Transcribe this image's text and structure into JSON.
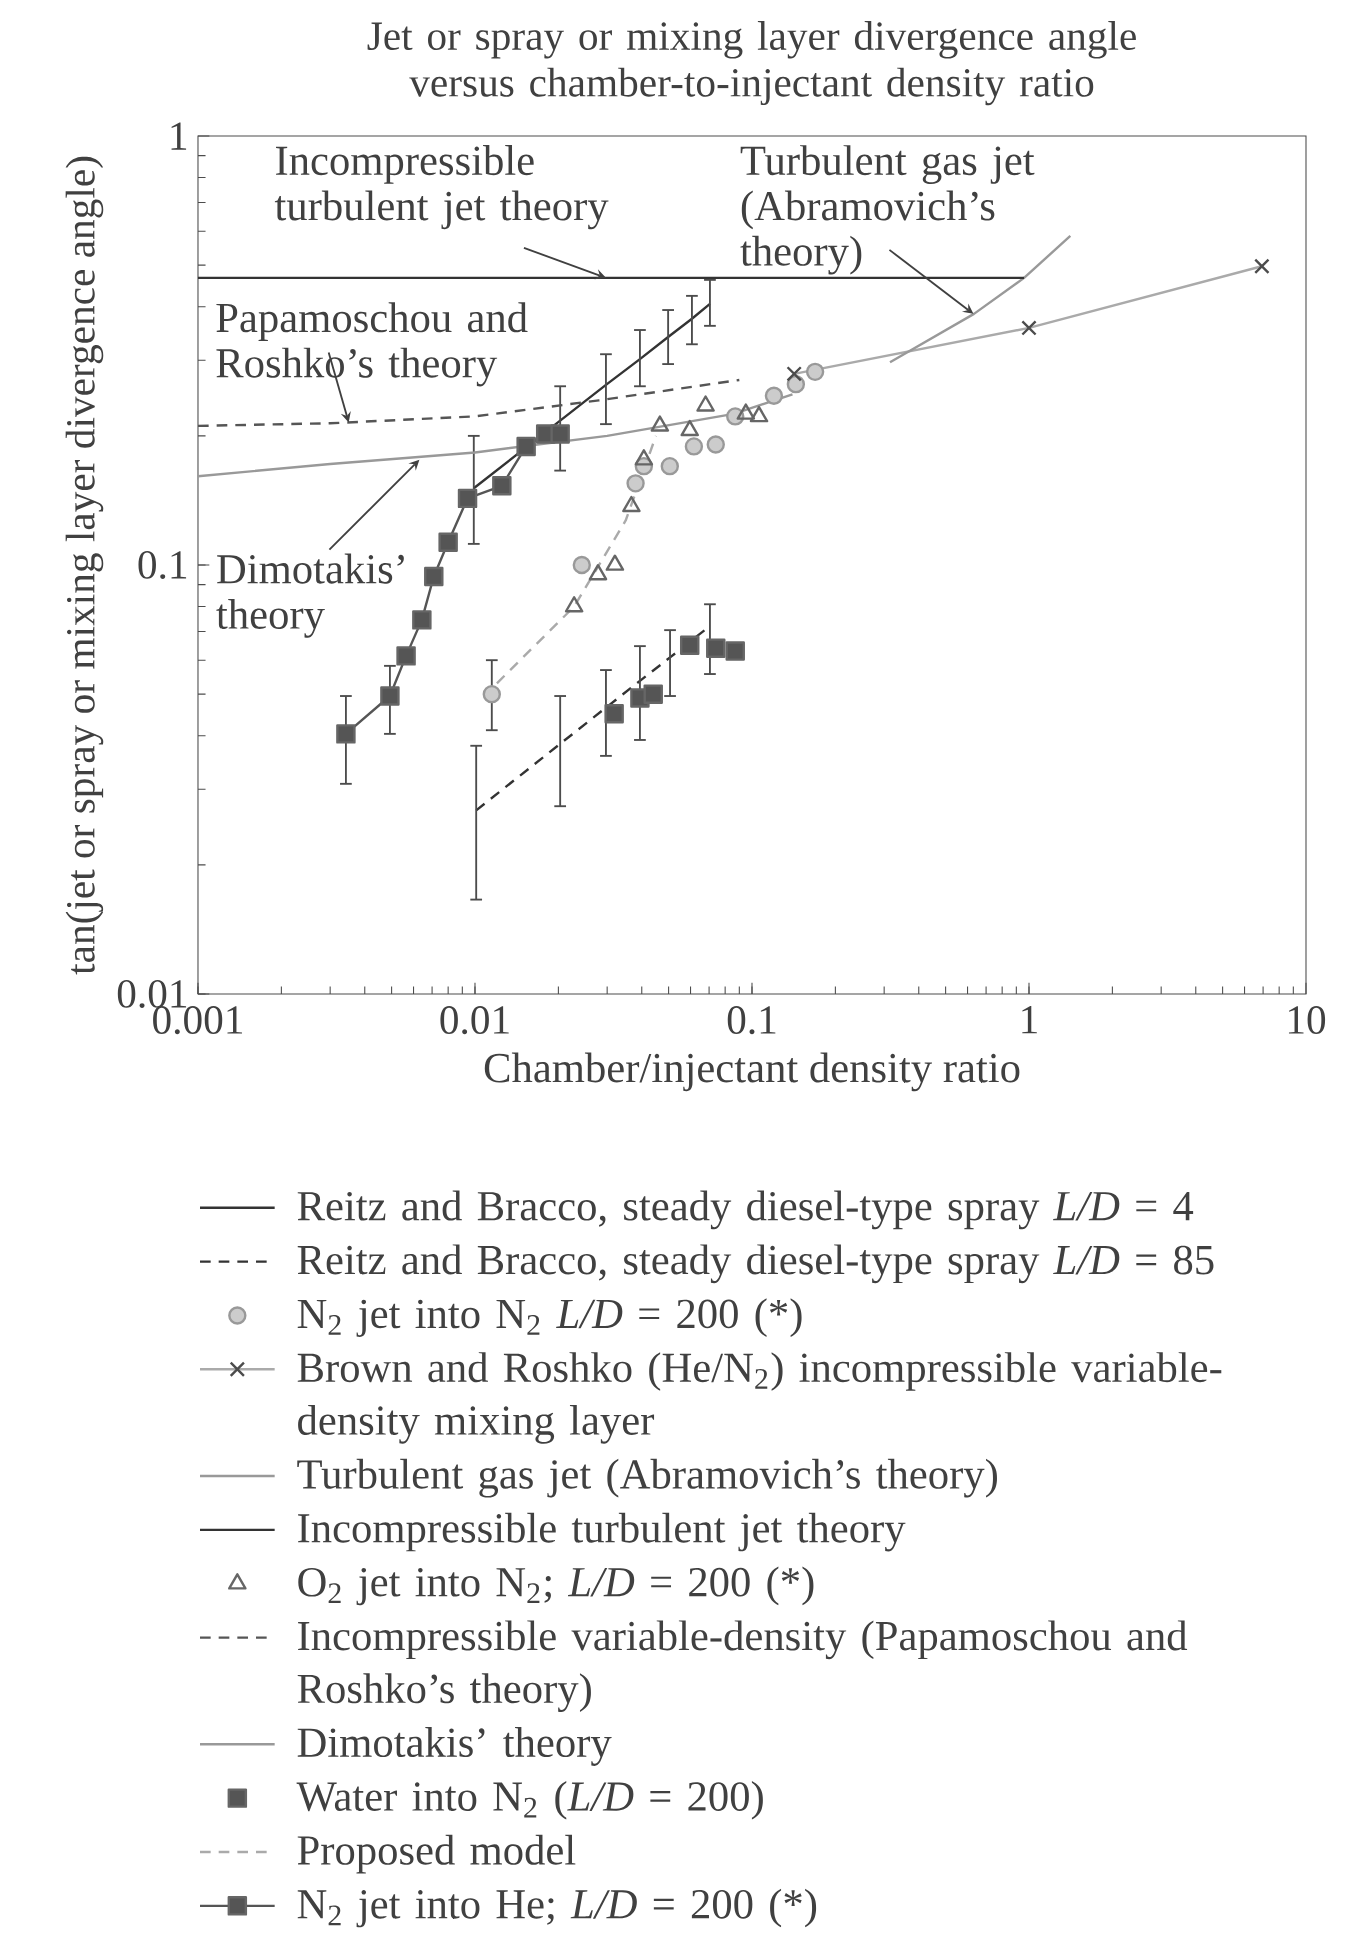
{
  "chart_data": {
    "type": "line",
    "title": "Jet or spray or mixing layer divergence angle versus chamber-to-injectant density ratio",
    "xlabel": "Chamber/injectant density ratio",
    "ylabel": "tan(jet or spray or mixing layer divergence angle)",
    "log": "xy",
    "xlim": [
      0.001,
      10
    ],
    "ylim": [
      0.01,
      1
    ],
    "xticks": [
      0.001,
      0.01,
      0.1,
      1,
      10
    ],
    "yticks": [
      0.01,
      0.1,
      1
    ],
    "legend": "bottom",
    "series": [
      {
        "name": "Reitz and Bracco, steady diesel-type spray *L/D* = 4",
        "type": "line",
        "marker": "none",
        "line_style": "solid",
        "color": "#333333",
        "x": [
          0.0099,
          0.0203,
          0.0297,
          0.0394,
          0.0498,
          0.0607,
          0.0705
        ],
        "values": [
          0.151,
          0.217,
          0.263,
          0.302,
          0.34,
          0.375,
          0.406
        ],
        "errors": [
          [
            0.112,
            0.2
          ],
          [
            0.166,
            0.261
          ],
          [
            0.213,
            0.31
          ],
          [
            0.261,
            0.353
          ],
          [
            0.294,
            0.393
          ],
          [
            0.327,
            0.424
          ],
          [
            0.361,
            0.462
          ]
        ]
      },
      {
        "name": "Reitz and Bracco, steady diesel-type spray *L/D* = 85",
        "type": "line",
        "marker": "none",
        "line_style": "dashed",
        "color": "#333333",
        "x": [
          0.0101,
          0.0203,
          0.0297,
          0.0394,
          0.0506,
          0.0705
        ],
        "values": [
          0.0268,
          0.0383,
          0.0465,
          0.0537,
          0.0609,
          0.0721
        ],
        "errors": [
          [
            0.0166,
            0.0379
          ],
          [
            0.0274,
            0.0495
          ],
          [
            0.0359,
            0.0569
          ],
          [
            0.0391,
            0.0647
          ],
          [
            0.0495,
            0.0705
          ],
          [
            0.0557,
            0.081
          ]
        ]
      },
      {
        "name": "N$_{2}$ jet into N$_{2}$ *L/D* = 200 (*)",
        "type": "scatter",
        "marker": "circle",
        "color": "#999999",
        "x": [
          0.0115,
          0.0243,
          0.038,
          0.0407,
          0.0505,
          0.0617,
          0.074,
          0.087,
          0.12,
          0.144,
          0.169
        ],
        "values": [
          0.05,
          0.1,
          0.155,
          0.17,
          0.17,
          0.189,
          0.191,
          0.222,
          0.248,
          0.264,
          0.282
        ],
        "errors": [
          [
            0.0412,
            0.06
          ],
          null,
          null,
          null,
          null,
          null,
          null,
          null,
          null,
          null,
          null
        ]
      },
      {
        "name": "Brown and Roshko (He/N$_{2}$) incompressible variable-density mixing layer",
        "type": "line",
        "marker": "cross",
        "line_style": "solid",
        "color": "#aaaaaa",
        "x": [
          0.142,
          1.0,
          6.93
        ],
        "values": [
          0.279,
          0.357,
          0.497
        ]
      },
      {
        "name": "Turbulent gas jet (Abramovich’s theory)",
        "type": "line",
        "marker": "none",
        "line_style": "solid",
        "color": "#999999",
        "x": [
          0.315,
          0.633,
          0.96,
          1.41
        ],
        "values": [
          0.297,
          0.385,
          0.467,
          0.585
        ]
      },
      {
        "name": "Incompressible turbulent jet theory",
        "type": "line",
        "marker": "none",
        "line_style": "solid",
        "color": "#333333",
        "x": [
          0.001,
          0.96
        ],
        "values": [
          0.467,
          0.467
        ]
      },
      {
        "name": "O$_{2}$ jet into N$_{2}$; *L/D* = 200 (*)",
        "type": "scatter",
        "marker": "triangle",
        "color": "#666666",
        "x": [
          0.0228,
          0.0278,
          0.032,
          0.0367,
          0.0407,
          0.0465,
          0.0596,
          0.068,
          0.095,
          0.106
        ],
        "values": [
          0.08,
          0.095,
          0.1,
          0.137,
          0.176,
          0.211,
          0.206,
          0.235,
          0.225,
          0.222
        ]
      },
      {
        "name": "Incompressible variable-density (Papamoschou and Roshko’s theory)",
        "type": "line",
        "marker": "none",
        "line_style": "dashed",
        "color": "#555555",
        "x": [
          0.001,
          0.003,
          0.01,
          0.028,
          0.09
        ],
        "values": [
          0.211,
          0.214,
          0.222,
          0.242,
          0.27
        ]
      },
      {
        "name": "Dimotakis’ theory",
        "type": "line",
        "marker": "none",
        "line_style": "solid",
        "color": "#999999",
        "x": [
          0.001,
          0.003,
          0.01,
          0.03,
          0.086,
          0.14
        ],
        "values": [
          0.161,
          0.172,
          0.183,
          0.2,
          0.225,
          0.25
        ]
      },
      {
        "name": "Water into N$_{2}$ (*L/D* = 200)",
        "type": "scatter",
        "marker": "square",
        "color": "#555555",
        "x": [
          0.0318,
          0.0394,
          0.044,
          0.0596,
          0.074,
          0.087
        ],
        "values": [
          0.045,
          0.049,
          0.05,
          0.065,
          0.064,
          0.063
        ]
      },
      {
        "name": "Proposed model",
        "type": "line",
        "marker": "none",
        "line_style": "dashed",
        "color": "#aaaaaa",
        "x": [
          0.012,
          0.0228,
          0.035,
          0.045
        ],
        "values": [
          0.053,
          0.08,
          0.127,
          0.2
        ]
      },
      {
        "name": "N$_{2}$ jet into He; *L/D* = 200 (*)",
        "type": "line",
        "marker": "square",
        "line_style": "solid",
        "color": "#555555",
        "x": [
          0.00342,
          0.00493,
          0.00564,
          0.00643,
          0.0071,
          0.008,
          0.0094,
          0.0125,
          0.0153,
          0.018,
          0.0203
        ],
        "values": [
          0.0404,
          0.0495,
          0.0614,
          0.0745,
          0.094,
          0.113,
          0.143,
          0.153,
          0.189,
          0.202,
          0.202
        ],
        "errors": [
          [
            0.0309,
            0.0495
          ],
          [
            0.0404,
            0.0582
          ],
          null,
          null,
          null,
          null,
          null,
          null,
          null,
          null,
          null
        ]
      }
    ],
    "annotations": [
      {
        "text": "Incompressible turbulent jet theory",
        "x": 0.0297,
        "y": 0.467
      },
      {
        "text": "Papamoschou and Roshko’s theory",
        "x": 0.0035,
        "y": 0.215
      },
      {
        "text": "Dimotakis’ theory",
        "x": 0.0063,
        "y": 0.176
      },
      {
        "text": "Turbulent gas jet (Abramovich’s theory)",
        "x": 0.63,
        "y": 0.385
      }
    ]
  }
}
